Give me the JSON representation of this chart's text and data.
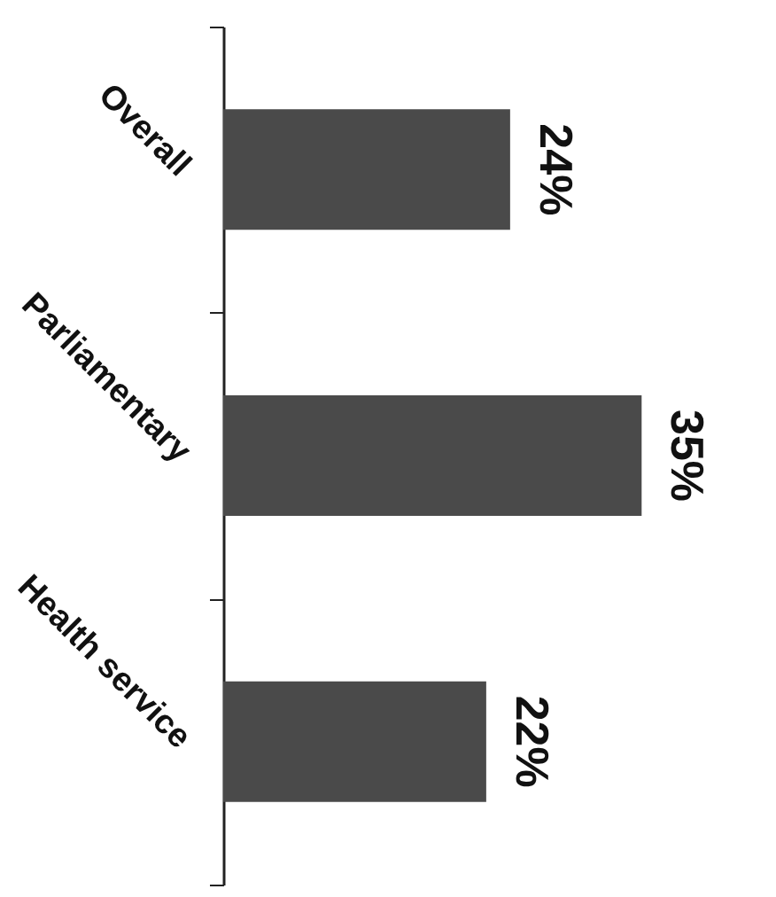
{
  "chart_data": {
    "type": "bar",
    "orientation": "horizontal",
    "categories": [
      "Overall",
      "Parliamentary",
      "Health service"
    ],
    "values": [
      24,
      35,
      22
    ],
    "value_labels": [
      "24%",
      "35%",
      "22%"
    ],
    "color": "#4a4a4a",
    "grid": false,
    "tick_labels": "y"
  }
}
